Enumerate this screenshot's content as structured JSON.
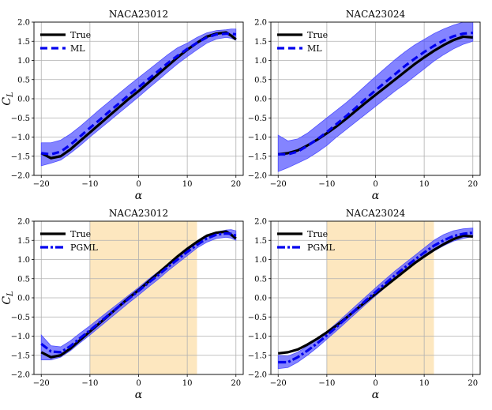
{
  "chart_data": [
    {
      "type": "line",
      "title": "NACA23012",
      "xlabel": "α",
      "ylabel": "C_L",
      "xlim": [
        -21.5,
        21.5
      ],
      "ylim": [
        -2.0,
        2.0
      ],
      "xticks": [
        -20,
        -10,
        0,
        10,
        20
      ],
      "yticks": [
        -2.0,
        -1.5,
        -1.0,
        -0.5,
        0.0,
        0.5,
        1.0,
        1.5,
        2.0
      ],
      "grid": true,
      "legend": "top-left",
      "x": [
        -20,
        -18,
        -16,
        -14,
        -12,
        -10,
        -8,
        -6,
        -4,
        -2,
        0,
        2,
        4,
        6,
        8,
        10,
        12,
        14,
        16,
        18,
        19,
        20
      ],
      "band": {
        "lower": [
          -1.75,
          -1.68,
          -1.6,
          -1.42,
          -1.22,
          -1.0,
          -0.79,
          -0.58,
          -0.37,
          -0.16,
          0.05,
          0.27,
          0.48,
          0.7,
          0.91,
          1.1,
          1.28,
          1.45,
          1.56,
          1.6,
          1.58,
          1.53
        ],
        "upper": [
          -1.15,
          -1.15,
          -1.08,
          -0.92,
          -0.72,
          -0.5,
          -0.28,
          -0.07,
          0.14,
          0.35,
          0.55,
          0.75,
          0.95,
          1.15,
          1.33,
          1.45,
          1.6,
          1.72,
          1.78,
          1.8,
          1.82,
          1.82
        ]
      },
      "series": [
        {
          "name": "True",
          "values": [
            -1.42,
            -1.55,
            -1.5,
            -1.32,
            -1.1,
            -0.88,
            -0.66,
            -0.44,
            -0.22,
            0.0,
            0.2,
            0.42,
            0.64,
            0.86,
            1.08,
            1.28,
            1.46,
            1.62,
            1.7,
            1.73,
            1.65,
            1.55
          ]
        },
        {
          "name": "ML",
          "values": [
            -1.42,
            -1.45,
            -1.38,
            -1.2,
            -0.98,
            -0.76,
            -0.55,
            -0.33,
            -0.12,
            0.1,
            0.3,
            0.51,
            0.72,
            0.93,
            1.12,
            1.3,
            1.46,
            1.6,
            1.68,
            1.7,
            1.7,
            1.68
          ]
        }
      ],
      "shade_x": null
    },
    {
      "type": "line",
      "title": "NACA23024",
      "xlabel": "α",
      "ylabel": "",
      "xlim": [
        -21.5,
        21.5
      ],
      "ylim": [
        -2.0,
        2.0
      ],
      "xticks": [
        -20,
        -10,
        0,
        10,
        20
      ],
      "yticks": [
        -2.0,
        -1.5,
        -1.0,
        -0.5,
        0.0,
        0.5,
        1.0,
        1.5,
        2.0
      ],
      "grid": true,
      "legend": "top-left",
      "x": [
        -20,
        -18,
        -16,
        -14,
        -12,
        -10,
        -8,
        -6,
        -4,
        -2,
        0,
        2,
        4,
        6,
        8,
        10,
        12,
        14,
        16,
        18,
        20
      ],
      "band": {
        "lower": [
          -1.9,
          -1.8,
          -1.68,
          -1.56,
          -1.4,
          -1.22,
          -1.0,
          -0.8,
          -0.6,
          -0.4,
          -0.2,
          0.0,
          0.2,
          0.38,
          0.58,
          0.78,
          0.98,
          1.15,
          1.3,
          1.42,
          1.5
        ],
        "upper": [
          -0.95,
          -1.1,
          -1.05,
          -0.9,
          -0.7,
          -0.5,
          -0.3,
          -0.1,
          0.12,
          0.35,
          0.58,
          0.8,
          1.02,
          1.22,
          1.4,
          1.55,
          1.7,
          1.82,
          1.92,
          2.0,
          2.0
        ]
      },
      "series": [
        {
          "name": "True",
          "values": [
            -1.45,
            -1.42,
            -1.35,
            -1.22,
            -1.07,
            -0.9,
            -0.72,
            -0.52,
            -0.31,
            -0.1,
            0.1,
            0.3,
            0.5,
            0.7,
            0.9,
            1.08,
            1.25,
            1.4,
            1.53,
            1.62,
            1.6
          ]
        },
        {
          "name": "ML",
          "values": [
            -1.45,
            -1.45,
            -1.38,
            -1.23,
            -1.06,
            -0.87,
            -0.66,
            -0.45,
            -0.23,
            0.0,
            0.22,
            0.43,
            0.64,
            0.85,
            1.04,
            1.22,
            1.38,
            1.52,
            1.63,
            1.7,
            1.72
          ]
        }
      ],
      "shade_x": null
    },
    {
      "type": "line",
      "title": "NACA23012",
      "xlabel": "α",
      "ylabel": "C_L",
      "xlim": [
        -21.5,
        21.5
      ],
      "ylim": [
        -2.0,
        2.0
      ],
      "xticks": [
        -20,
        -10,
        0,
        10,
        20
      ],
      "yticks": [
        -2.0,
        -1.5,
        -1.0,
        -0.5,
        0.0,
        0.5,
        1.0,
        1.5,
        2.0
      ],
      "grid": true,
      "legend": "top-left",
      "x": [
        -20,
        -18,
        -16,
        -14,
        -12,
        -10,
        -8,
        -6,
        -4,
        -2,
        0,
        2,
        4,
        6,
        8,
        10,
        12,
        14,
        16,
        18,
        19,
        20
      ],
      "band": {
        "lower": [
          -1.62,
          -1.62,
          -1.55,
          -1.38,
          -1.17,
          -0.97,
          -0.76,
          -0.55,
          -0.34,
          -0.13,
          0.07,
          0.28,
          0.48,
          0.7,
          0.9,
          1.1,
          1.3,
          1.45,
          1.55,
          1.58,
          1.56,
          1.5
        ],
        "upper": [
          -0.97,
          -1.25,
          -1.28,
          -1.12,
          -0.92,
          -0.73,
          -0.53,
          -0.33,
          -0.13,
          0.07,
          0.27,
          0.48,
          0.68,
          0.88,
          1.06,
          1.25,
          1.42,
          1.6,
          1.72,
          1.77,
          1.78,
          1.75
        ]
      },
      "series": [
        {
          "name": "True",
          "values": [
            -1.42,
            -1.55,
            -1.5,
            -1.32,
            -1.1,
            -0.88,
            -0.66,
            -0.44,
            -0.22,
            0.0,
            0.2,
            0.42,
            0.64,
            0.86,
            1.08,
            1.28,
            1.46,
            1.62,
            1.7,
            1.73,
            1.65,
            1.55
          ]
        },
        {
          "name": "PGML",
          "values": [
            -1.2,
            -1.4,
            -1.42,
            -1.26,
            -1.05,
            -0.85,
            -0.64,
            -0.43,
            -0.22,
            -0.02,
            0.18,
            0.39,
            0.59,
            0.8,
            1.0,
            1.2,
            1.38,
            1.55,
            1.65,
            1.68,
            1.67,
            1.62
          ]
        }
      ],
      "shade_x": [
        -10,
        12
      ]
    },
    {
      "type": "line",
      "title": "NACA23024",
      "xlabel": "α",
      "ylabel": "",
      "xlim": [
        -21.5,
        21.5
      ],
      "ylim": [
        -2.0,
        2.0
      ],
      "xticks": [
        -20,
        -10,
        0,
        10,
        20
      ],
      "yticks": [
        -2.0,
        -1.5,
        -1.0,
        -0.5,
        0.0,
        0.5,
        1.0,
        1.5,
        2.0
      ],
      "grid": true,
      "legend": "top-left",
      "x": [
        -20,
        -18,
        -16,
        -14,
        -12,
        -10,
        -8,
        -6,
        -4,
        -2,
        0,
        2,
        4,
        6,
        8,
        10,
        12,
        14,
        16,
        18,
        20
      ],
      "band": {
        "lower": [
          -1.85,
          -1.82,
          -1.68,
          -1.5,
          -1.3,
          -1.08,
          -0.86,
          -0.63,
          -0.4,
          -0.17,
          0.05,
          0.27,
          0.48,
          0.68,
          0.88,
          1.06,
          1.22,
          1.36,
          1.48,
          1.55,
          1.6
        ],
        "upper": [
          -1.5,
          -1.52,
          -1.42,
          -1.26,
          -1.08,
          -0.88,
          -0.66,
          -0.43,
          -0.2,
          0.03,
          0.26,
          0.48,
          0.7,
          0.9,
          1.1,
          1.3,
          1.5,
          1.65,
          1.75,
          1.8,
          1.82
        ]
      },
      "series": [
        {
          "name": "True",
          "values": [
            -1.45,
            -1.42,
            -1.35,
            -1.22,
            -1.07,
            -0.9,
            -0.72,
            -0.52,
            -0.31,
            -0.1,
            0.1,
            0.3,
            0.5,
            0.7,
            0.9,
            1.08,
            1.25,
            1.4,
            1.53,
            1.62,
            1.6
          ]
        },
        {
          "name": "PGML",
          "values": [
            -1.68,
            -1.68,
            -1.55,
            -1.38,
            -1.19,
            -0.98,
            -0.76,
            -0.53,
            -0.3,
            -0.07,
            0.15,
            0.37,
            0.59,
            0.79,
            0.99,
            1.18,
            1.36,
            1.5,
            1.61,
            1.67,
            1.7
          ]
        }
      ],
      "shade_x": [
        -10,
        12
      ]
    }
  ],
  "colors": {
    "true_line": "#000000",
    "model_line": "#0000ee",
    "band_fill": "#5050ff",
    "shade_fill": "#fde7bf",
    "grid": "#b0b0b0"
  }
}
